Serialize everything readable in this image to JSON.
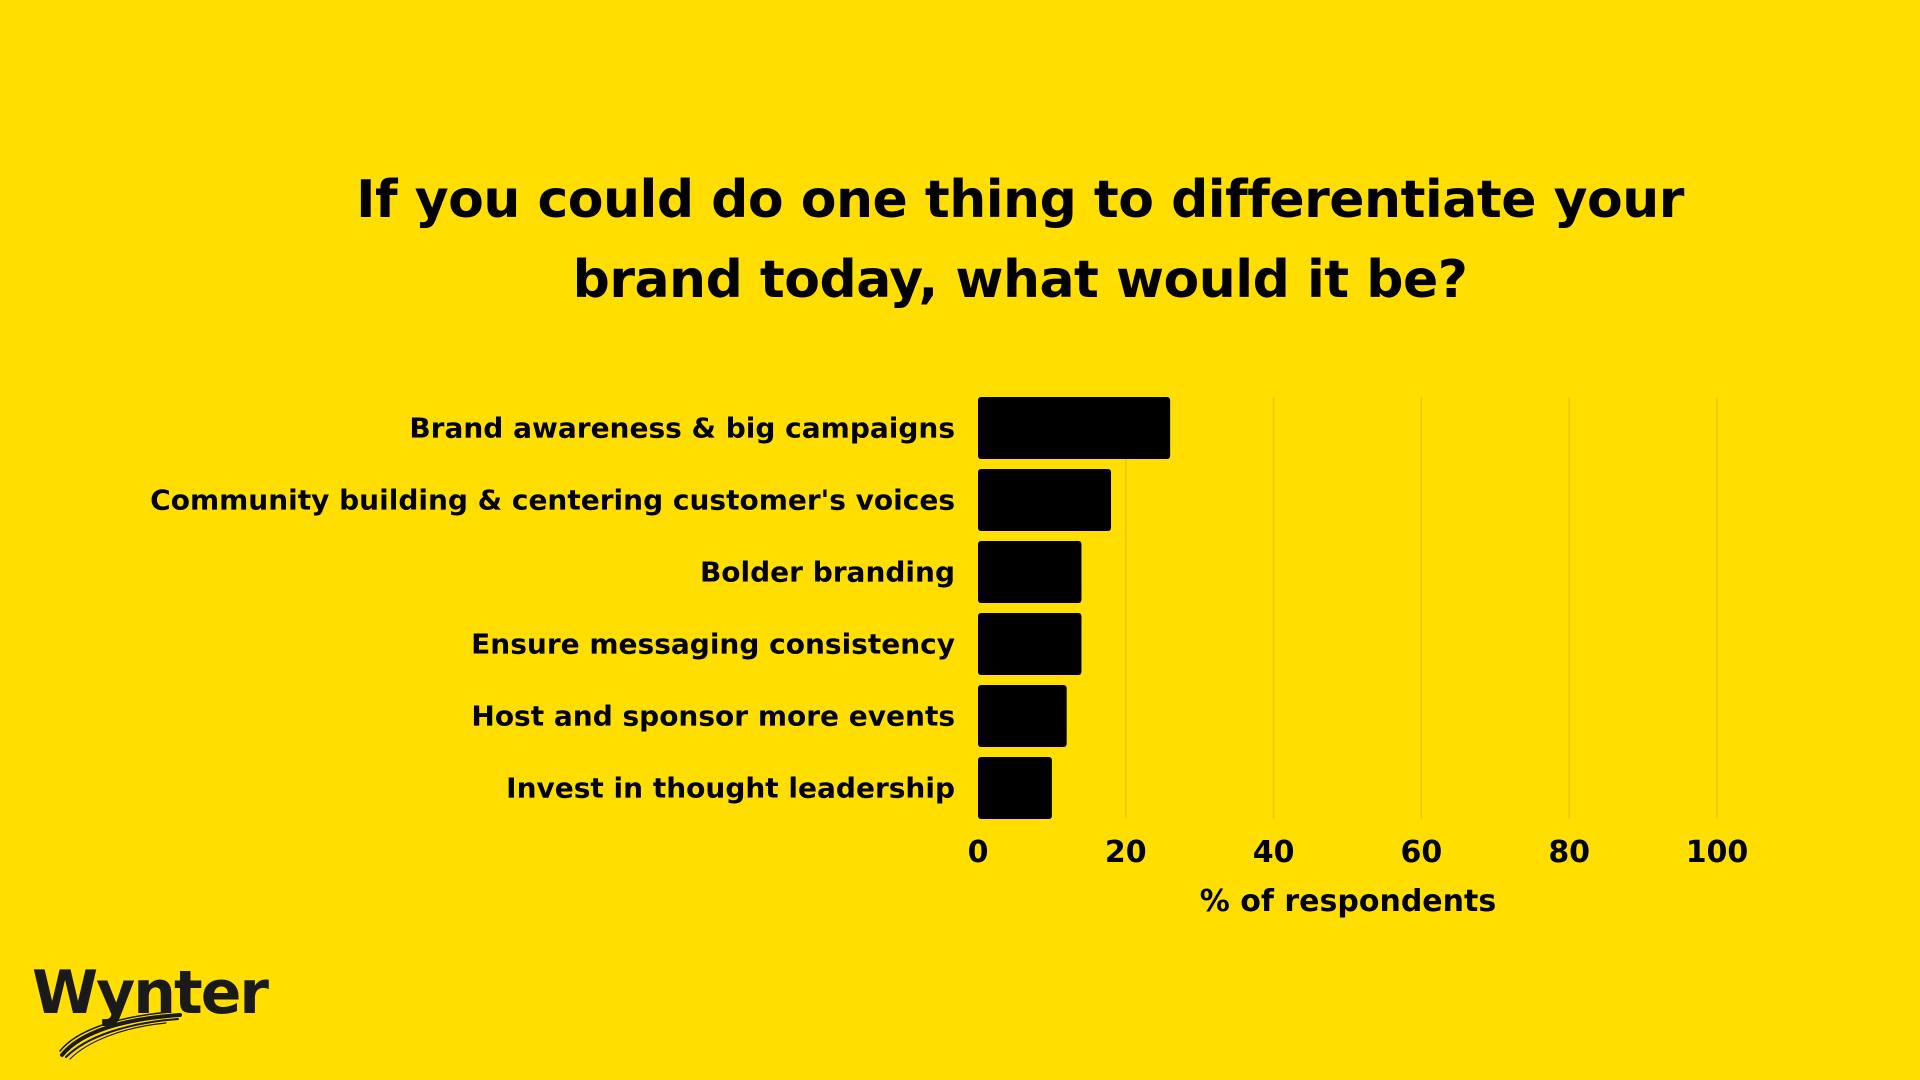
{
  "colors": {
    "background": "#FFDE00",
    "bar": "#000000",
    "text": "#000000",
    "gridline": "#E6C800"
  },
  "brand": {
    "logo_text": "Wynter"
  },
  "chart_data": {
    "type": "bar",
    "orientation": "horizontal",
    "title": "If you could do one thing to differentiate your brand today, what would it be?",
    "xlabel": "% of respondents",
    "ylabel": "",
    "categories": [
      "Brand awareness & big campaigns",
      "Community building & centering customer's voices",
      "Bolder branding",
      "Ensure messaging consistency",
      "Host and sponsor more events",
      "Invest in thought leadership"
    ],
    "values": [
      26,
      18,
      14,
      14,
      12,
      10
    ],
    "xlim": [
      0,
      100
    ],
    "x_ticks": [
      0,
      20,
      40,
      60,
      80,
      100
    ],
    "grid": "vertical",
    "legend": "none"
  }
}
